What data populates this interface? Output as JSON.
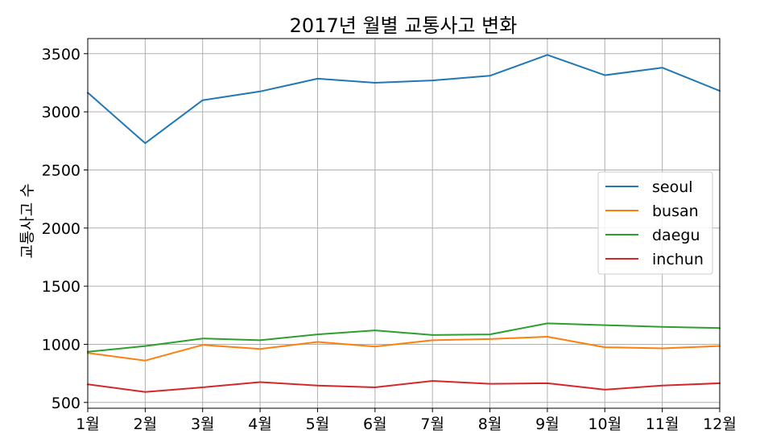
{
  "chart_data": {
    "type": "line",
    "title": "2017년 월별 교통사고 변화",
    "xlabel": "",
    "ylabel": "교통사고 수",
    "categories": [
      "1월",
      "2월",
      "3월",
      "4월",
      "5월",
      "6월",
      "7월",
      "8월",
      "9월",
      "10월",
      "11월",
      "12월"
    ],
    "yticks": [
      500,
      1000,
      1500,
      2000,
      2500,
      3000,
      3500
    ],
    "ylim": [
      450,
      3630
    ],
    "grid": true,
    "legend_position": "center-right",
    "series": [
      {
        "name": "seoul",
        "color": "#1f77b4",
        "values": [
          3165,
          2730,
          3100,
          3175,
          3285,
          3250,
          3270,
          3310,
          3490,
          3315,
          3380,
          3180
        ]
      },
      {
        "name": "busan",
        "color": "#ff7f0e",
        "values": [
          925,
          860,
          995,
          960,
          1020,
          980,
          1035,
          1045,
          1065,
          975,
          965,
          985
        ]
      },
      {
        "name": "daegu",
        "color": "#2ca02c",
        "values": [
          935,
          985,
          1050,
          1035,
          1085,
          1120,
          1080,
          1085,
          1180,
          1165,
          1150,
          1140
        ]
      },
      {
        "name": "inchun",
        "color": "#d62728",
        "values": [
          655,
          590,
          630,
          675,
          645,
          630,
          685,
          660,
          665,
          610,
          645,
          665
        ]
      }
    ]
  }
}
